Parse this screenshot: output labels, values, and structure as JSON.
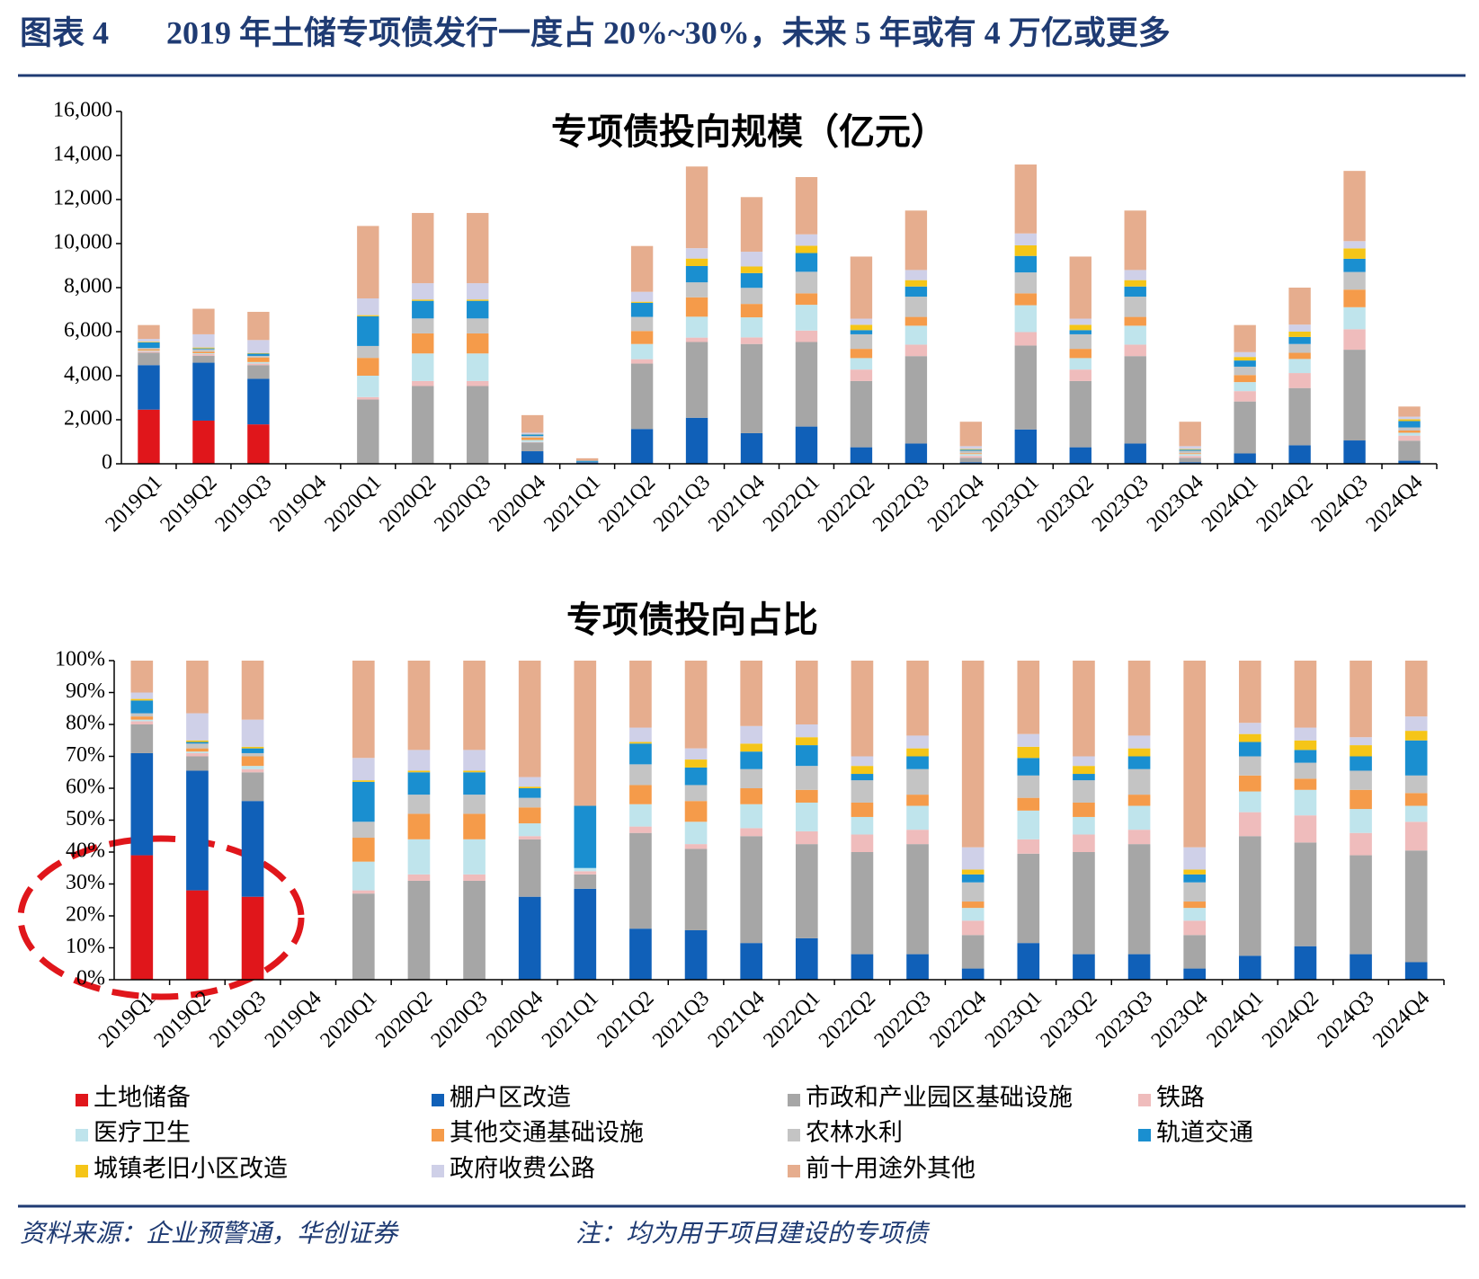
{
  "header": {
    "figure": "图表 4",
    "title": "2019 年土储专项债发行一度占 20%~30%，未来 5 年或有 4 万亿或更多"
  },
  "footer": {
    "source": "资料来源：企业预警通，华创证券",
    "note": "注：均为用于项目建设的专项债"
  },
  "chart_data": [
    {
      "type": "bar",
      "stacked": true,
      "title": "专项债投向规模（亿元）",
      "categories": [
        "2019Q1",
        "2019Q2",
        "2019Q3",
        "2019Q4",
        "2020Q1",
        "2020Q2",
        "2020Q3",
        "2020Q4",
        "2021Q1",
        "2021Q2",
        "2021Q3",
        "2021Q4",
        "2022Q1",
        "2022Q2",
        "2022Q3",
        "2022Q4",
        "2023Q1",
        "2023Q2",
        "2023Q3",
        "2023Q4",
        "2024Q1",
        "2024Q2",
        "2024Q3",
        "2024Q4"
      ],
      "ylim": [
        0,
        16000
      ],
      "yticks": [
        0,
        {
          "value": 2000,
          "label": "2,000"
        },
        {
          "value": 4000,
          "label": "4,000"
        },
        {
          "value": 6000,
          "label": "6,000"
        },
        {
          "value": 8000,
          "label": "8,000"
        },
        {
          "value": 10000,
          "label": "10,000"
        },
        {
          "value": 12000,
          "label": "12,000"
        },
        {
          "value": 14000,
          "label": "14,000"
        },
        {
          "value": 16000,
          "label": "16,000"
        }
      ],
      "series": [
        {
          "name": "土地储备",
          "color": "#e0161b",
          "values": [
            2460,
            1960,
            1790,
            0,
            0,
            0,
            0,
            0,
            0,
            0,
            0,
            0,
            0,
            0,
            0,
            0,
            0,
            0,
            0,
            0,
            0,
            0,
            0,
            0
          ]
        },
        {
          "name": "棚户区改造",
          "color": "#1060b8",
          "values": [
            2020,
            2630,
            2070,
            0,
            0,
            0,
            0,
            570,
            71,
            1580,
            2090,
            1390,
            1690,
            750,
            920,
            70,
            1560,
            750,
            920,
            70,
            470,
            840,
            1060,
            140
          ]
        },
        {
          "name": "市政和产业园区基础设施",
          "color": "#a6a6a6",
          "values": [
            570,
            320,
            620,
            0,
            2920,
            3530,
            3530,
            400,
            11,
            2970,
            3440,
            4050,
            3840,
            3010,
            3970,
            200,
            3810,
            3010,
            3970,
            200,
            2360,
            2600,
            4120,
            910
          ]
        },
        {
          "name": "铁路",
          "color": "#efbcbc",
          "values": [
            60,
            70,
            70,
            0,
            110,
            230,
            230,
            20,
            3,
            200,
            200,
            300,
            520,
            520,
            520,
            90,
            610,
            520,
            520,
            90,
            470,
            680,
            930,
            230
          ]
        },
        {
          "name": "医疗卫生",
          "color": "#bfe4ec",
          "values": [
            30,
            40,
            70,
            0,
            970,
            1250,
            1250,
            90,
            3,
            690,
            950,
            910,
            1170,
            520,
            860,
            80,
            1220,
            520,
            860,
            80,
            410,
            640,
            1000,
            130
          ]
        },
        {
          "name": "其他交通基础设施",
          "color": "#f59b4a",
          "values": [
            60,
            70,
            210,
            0,
            810,
            910,
            910,
            110,
            0,
            590,
            880,
            610,
            520,
            420,
            400,
            40,
            540,
            420,
            400,
            40,
            320,
            280,
            800,
            100
          ]
        },
        {
          "name": "农林水利",
          "color": "#c4c4c4",
          "values": [
            60,
            110,
            70,
            0,
            540,
            680,
            680,
            70,
            0,
            640,
            680,
            730,
            980,
            660,
            920,
            110,
            950,
            660,
            920,
            110,
            380,
            400,
            800,
            140
          ]
        },
        {
          "name": "轨道交通",
          "color": "#1a8fd0",
          "values": [
            250,
            40,
            100,
            0,
            1350,
            800,
            800,
            70,
            49,
            640,
            740,
            670,
            850,
            190,
            460,
            50,
            750,
            190,
            460,
            50,
            280,
            320,
            600,
            290
          ]
        },
        {
          "name": "城镇老旧小区改造",
          "color": "#f5c518",
          "values": [
            30,
            40,
            30,
            0,
            50,
            60,
            60,
            10,
            0,
            50,
            340,
            300,
            330,
            240,
            290,
            30,
            480,
            240,
            290,
            30,
            160,
            240,
            470,
            80
          ]
        },
        {
          "name": "政府收费公路",
          "color": "#cfd0e8",
          "values": [
            130,
            600,
            590,
            0,
            760,
            740,
            740,
            70,
            0,
            450,
            470,
            670,
            520,
            280,
            460,
            130,
            540,
            280,
            460,
            130,
            220,
            320,
            330,
            120
          ]
        },
        {
          "name": "前十用途外其他",
          "color": "#e6ad8e",
          "values": [
            630,
            1160,
            1280,
            0,
            3290,
            3190,
            3190,
            800,
            114,
            2080,
            3710,
            2480,
            2600,
            2820,
            2700,
            1110,
            3130,
            2820,
            2700,
            1110,
            1230,
            1680,
            3190,
            460
          ]
        }
      ]
    },
    {
      "type": "bar",
      "stacked": true,
      "title": "专项债投向占比",
      "categories": [
        "2019Q1",
        "2019Q2",
        "2019Q3",
        "2019Q4",
        "2020Q1",
        "2020Q2",
        "2020Q3",
        "2020Q4",
        "2021Q1",
        "2021Q2",
        "2021Q3",
        "2021Q4",
        "2022Q1",
        "2022Q2",
        "2022Q3",
        "2022Q4",
        "2023Q1",
        "2023Q2",
        "2023Q3",
        "2023Q4",
        "2024Q1",
        "2024Q2",
        "2024Q3",
        "2024Q4"
      ],
      "ylim": [
        0,
        100
      ],
      "yticks": [
        {
          "value": 0,
          "label": "0%"
        },
        {
          "value": 10,
          "label": "10%"
        },
        {
          "value": 20,
          "label": "20%"
        },
        {
          "value": 30,
          "label": "30%"
        },
        {
          "value": 40,
          "label": "40%"
        },
        {
          "value": 50,
          "label": "50%"
        },
        {
          "value": 60,
          "label": "60%"
        },
        {
          "value": 70,
          "label": "70%"
        },
        {
          "value": 80,
          "label": "80%"
        },
        {
          "value": 90,
          "label": "90%"
        },
        {
          "value": 100,
          "label": "100%"
        }
      ],
      "series": [
        {
          "values": [
            39,
            28,
            26,
            0,
            0,
            0,
            0,
            0,
            0,
            0,
            0,
            0,
            0,
            0,
            0,
            0,
            0,
            0,
            0,
            0,
            0,
            0,
            0,
            0
          ]
        },
        {
          "values": [
            32,
            37.5,
            30,
            0,
            0,
            0,
            0,
            26,
            28.5,
            16,
            15.5,
            11.5,
            13,
            8,
            8,
            3.5,
            11.5,
            8,
            8,
            3.5,
            7.5,
            10.5,
            8,
            5.5
          ]
        },
        {
          "values": [
            9,
            4.5,
            9,
            0,
            27,
            31,
            31,
            18,
            4.5,
            30,
            25.5,
            33.5,
            29.5,
            32,
            34.5,
            10.5,
            28,
            32,
            34.5,
            10.5,
            37.5,
            32.5,
            31,
            35
          ]
        },
        {
          "values": [
            1,
            1,
            1,
            0,
            1,
            2,
            2,
            1,
            1,
            2,
            1.5,
            2.5,
            4,
            5.5,
            4.5,
            4.5,
            4.5,
            5.5,
            4.5,
            4.5,
            7.5,
            8.5,
            7,
            9
          ]
        },
        {
          "values": [
            0.5,
            0.5,
            1,
            0,
            9,
            11,
            11,
            4,
            1,
            7,
            7,
            7.5,
            9,
            5.5,
            7.5,
            4,
            9,
            5.5,
            7.5,
            4,
            6.5,
            8,
            7.5,
            5
          ]
        },
        {
          "values": [
            1,
            1,
            3,
            0,
            7.5,
            8,
            8,
            5,
            0,
            6,
            6.5,
            5,
            4,
            4.5,
            3.5,
            2,
            4,
            4.5,
            3.5,
            2,
            5,
            3.5,
            6,
            4
          ]
        },
        {
          "values": [
            1,
            1.5,
            1,
            0,
            5,
            6,
            6,
            3,
            0,
            6.5,
            5,
            6,
            7.5,
            7,
            8,
            6,
            7,
            7,
            8,
            6,
            6,
            5,
            6,
            5.5
          ]
        },
        {
          "values": [
            4,
            0.5,
            1.5,
            0,
            12.5,
            7,
            7,
            3,
            19.5,
            6.5,
            5.5,
            5.5,
            6.5,
            2,
            4,
            2.5,
            5.5,
            2,
            4,
            2.5,
            4.5,
            4,
            4.5,
            11
          ]
        },
        {
          "values": [
            0.5,
            0.5,
            0.5,
            0,
            0.5,
            0.5,
            0.5,
            0.5,
            0,
            0.5,
            2.5,
            2.5,
            2.5,
            2.5,
            2.5,
            1.5,
            3.5,
            2.5,
            2.5,
            1.5,
            2.5,
            3,
            3.5,
            3
          ]
        },
        {
          "values": [
            2,
            8.5,
            8.5,
            0,
            7,
            6.5,
            6.5,
            3,
            0,
            4.5,
            3.5,
            5.5,
            4,
            3,
            4,
            7,
            4,
            3,
            4,
            7,
            3.5,
            4,
            2.5,
            4.5
          ]
        },
        {
          "values": [
            10,
            16.5,
            18.5,
            0,
            30.5,
            28,
            28,
            36.5,
            45.5,
            21,
            27.5,
            20.5,
            20,
            30,
            23.5,
            58.5,
            23,
            30,
            23.5,
            58.5,
            19.5,
            21,
            24,
            17.5
          ]
        }
      ]
    }
  ]
}
